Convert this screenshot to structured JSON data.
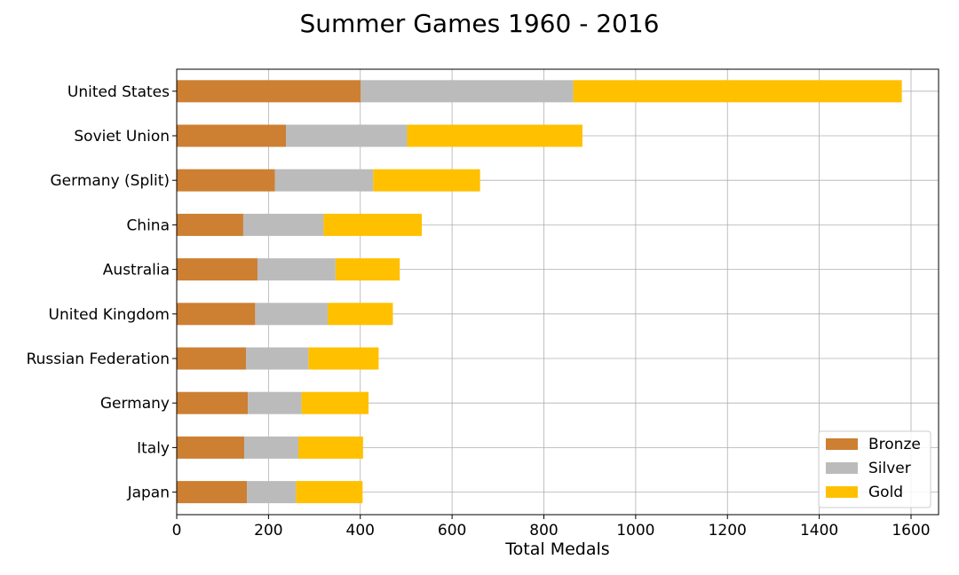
{
  "chart_data": {
    "type": "bar",
    "orientation": "horizontal",
    "stacked": true,
    "title": "Summer Games 1960 - 2016",
    "xlabel": "Total Medals",
    "ylabel": "",
    "xlim": [
      0,
      1660
    ],
    "xticks": [
      0,
      200,
      400,
      600,
      800,
      1000,
      1200,
      1400,
      1600
    ],
    "grid": true,
    "legend_position": "bottom-right",
    "categories": [
      "United States",
      "Soviet Union",
      "Germany (Split)",
      "China",
      "Australia",
      "United Kingdom",
      "Russian Federation",
      "Germany",
      "Italy",
      "Japan"
    ],
    "series": [
      {
        "name": "Bronze",
        "color": "#CD7F32",
        "values": [
          401,
          238,
          214,
          145,
          176,
          171,
          151,
          155,
          147,
          153
        ]
      },
      {
        "name": "Silver",
        "color": "#BBBBBB",
        "values": [
          463,
          264,
          214,
          175,
          170,
          158,
          136,
          117,
          118,
          107
        ]
      },
      {
        "name": "Gold",
        "color": "#FFC000",
        "values": [
          716,
          382,
          233,
          214,
          140,
          142,
          153,
          146,
          141,
          145
        ]
      }
    ]
  }
}
